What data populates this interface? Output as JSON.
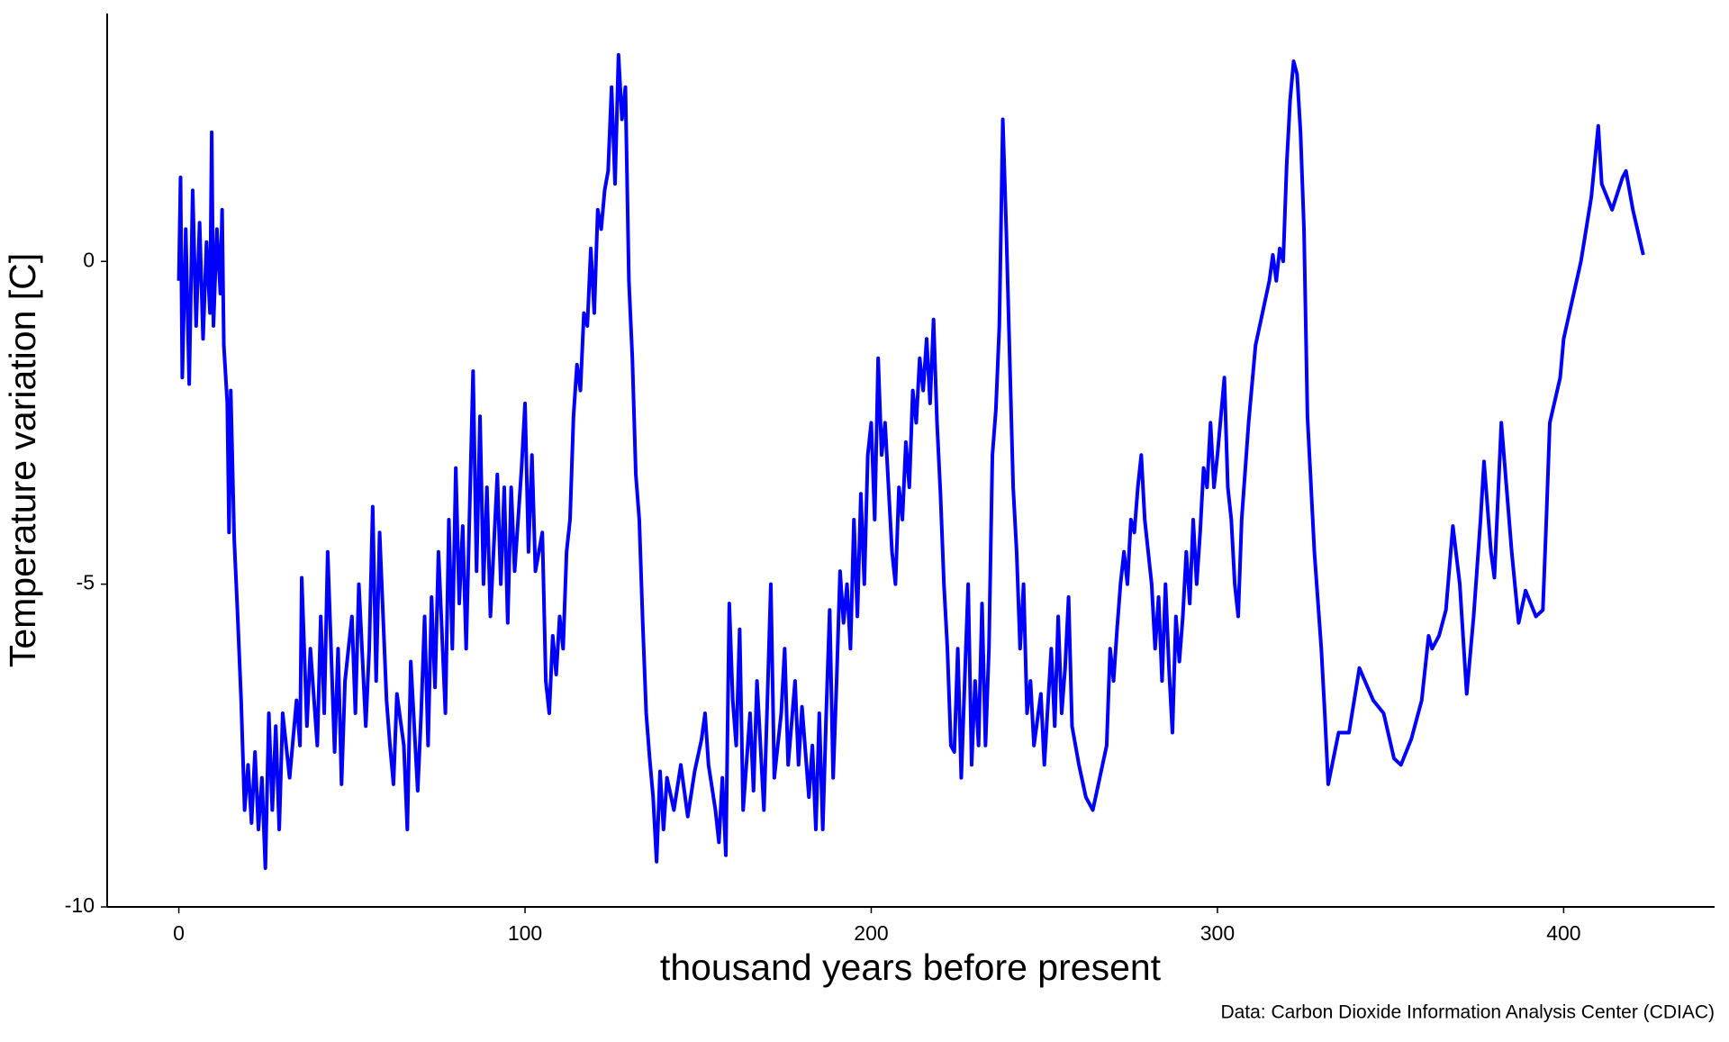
{
  "chart_data": {
    "type": "line",
    "xlabel": "thousand years before present",
    "ylabel": "Temperature variation [C]",
    "caption": "Data: Carbon Dioxide Information Analysis Center (CDIAC)",
    "color": "#0000ff",
    "xlim": [
      -20.7,
      443.6
    ],
    "xticks": [
      0,
      100,
      200,
      300,
      400
    ],
    "ylim": [
      -10,
      3.84
    ],
    "yticks": [
      -10,
      -5,
      0
    ],
    "grid": false,
    "x": [
      0,
      0.5,
      1,
      2,
      3,
      4,
      5,
      6,
      7,
      8,
      9,
      9.5,
      10,
      11,
      12,
      12.5,
      13,
      14,
      14.5,
      15,
      16,
      17,
      18,
      19,
      20,
      21,
      22,
      23,
      24,
      25,
      26,
      27,
      28,
      29,
      30,
      32,
      34,
      35,
      35.5,
      37,
      38,
      40,
      41,
      42,
      43,
      45,
      46,
      47,
      48,
      50,
      51,
      52,
      54,
      55,
      56,
      57,
      58,
      60,
      61,
      62,
      63,
      65,
      66,
      67,
      69,
      70,
      71,
      72,
      73,
      74,
      75,
      77,
      78,
      79,
      80,
      81,
      82,
      83,
      85,
      86,
      87,
      88,
      89,
      90,
      92,
      93,
      94,
      95,
      96,
      97,
      99,
      100,
      101,
      102,
      103,
      105,
      106,
      107,
      108,
      109,
      110,
      111,
      112,
      113,
      114,
      115,
      116,
      117,
      118,
      119,
      120,
      121,
      122,
      123,
      124,
      125,
      126,
      127,
      128,
      129,
      130,
      131,
      132,
      133,
      134,
      135,
      136,
      137,
      138,
      139,
      140,
      141,
      143,
      145,
      147,
      149,
      151,
      152,
      153,
      155,
      156,
      157,
      158,
      159,
      160,
      161,
      162,
      163,
      165,
      166,
      167,
      169,
      170,
      171,
      172,
      174,
      175,
      176,
      178,
      179,
      180,
      182,
      183,
      184,
      185,
      186,
      187,
      188,
      189,
      190,
      191,
      192,
      193,
      194,
      195,
      196,
      197,
      198,
      199,
      200,
      201,
      202,
      203,
      204,
      205,
      206,
      207,
      208,
      209,
      210,
      211,
      212,
      213,
      214,
      215,
      216,
      217,
      218,
      219,
      220,
      221,
      222,
      223,
      224,
      225,
      226,
      227,
      228,
      229,
      230,
      231,
      232,
      233,
      234,
      235,
      236,
      237,
      238,
      239,
      240,
      241,
      242,
      243,
      244,
      245,
      246,
      247,
      249,
      250,
      252,
      253,
      254,
      255,
      256,
      257,
      258,
      260,
      262,
      264,
      266,
      268,
      269,
      270,
      271,
      272,
      273,
      274,
      275,
      276,
      277,
      278,
      279,
      280,
      281,
      282,
      283,
      284,
      285,
      286,
      287,
      288,
      289,
      290,
      291,
      292,
      293,
      294,
      295,
      296,
      297,
      298,
      299,
      300,
      302,
      303,
      304,
      305,
      306,
      307,
      309,
      311,
      313,
      315,
      316,
      317,
      318,
      319,
      320,
      321,
      322,
      323,
      324,
      325,
      326,
      328,
      330,
      331,
      332,
      335,
      338,
      341,
      345,
      348,
      351,
      353,
      356,
      359,
      361,
      362,
      364,
      366,
      368,
      370,
      372,
      374,
      376,
      377,
      379,
      380,
      382,
      385,
      387,
      389,
      392,
      394,
      395,
      396,
      399,
      400,
      405,
      408,
      410,
      411,
      414,
      417,
      418,
      420,
      423
    ],
    "values": [
      -0.3,
      1.3,
      -1.8,
      0.5,
      -1.9,
      1.1,
      -1,
      0.6,
      -1.2,
      0.3,
      -0.8,
      2.0,
      -1,
      0.5,
      -0.5,
      0.8,
      -1.3,
      -2.2,
      -4.2,
      -2,
      -4.3,
      -5.5,
      -6.8,
      -8.5,
      -7.8,
      -8.7,
      -7.6,
      -8.8,
      -8.0,
      -9.4,
      -7.0,
      -8.5,
      -7.2,
      -8.8,
      -7.0,
      -8.0,
      -6.8,
      -7.5,
      -4.9,
      -7.2,
      -6.0,
      -7.5,
      -5.5,
      -7.0,
      -4.5,
      -7.6,
      -6.0,
      -8.1,
      -6.5,
      -5.5,
      -7.0,
      -5.0,
      -7.2,
      -6.0,
      -3.8,
      -6.5,
      -4.2,
      -6.8,
      -7.5,
      -8.1,
      -6.7,
      -7.5,
      -8.8,
      -6.2,
      -8.2,
      -7.0,
      -5.5,
      -7.5,
      -5.2,
      -6.6,
      -4.5,
      -7.0,
      -4.0,
      -6.0,
      -3.2,
      -5.3,
      -4.1,
      -6.0,
      -1.7,
      -4.8,
      -2.4,
      -5.0,
      -3.5,
      -5.5,
      -3.3,
      -5.0,
      -3.5,
      -5.6,
      -3.5,
      -4.8,
      -3.2,
      -2.2,
      -4.5,
      -3.0,
      -4.8,
      -4.2,
      -6.5,
      -7.0,
      -5.8,
      -6.4,
      -5.5,
      -6.0,
      -4.5,
      -4.0,
      -2.4,
      -1.6,
      -2.0,
      -0.8,
      -1.0,
      0.2,
      -0.8,
      0.8,
      0.5,
      1.1,
      1.4,
      2.7,
      1.2,
      3.2,
      2.2,
      2.7,
      -0.3,
      -1.5,
      -3.3,
      -4.0,
      -5.6,
      -7.0,
      -7.7,
      -8.3,
      -9.3,
      -7.9,
      -8.8,
      -8.0,
      -8.5,
      -7.8,
      -8.6,
      -7.9,
      -7.4,
      -7.0,
      -7.8,
      -8.5,
      -9.0,
      -8.0,
      -9.2,
      -5.3,
      -6.8,
      -7.5,
      -5.7,
      -8.5,
      -7.0,
      -8.2,
      -6.5,
      -8.5,
      -6.8,
      -5.0,
      -8.0,
      -7.0,
      -6.0,
      -7.8,
      -6.5,
      -7.8,
      -6.9,
      -8.3,
      -7.5,
      -8.8,
      -7.0,
      -8.8,
      -7.0,
      -5.4,
      -8.0,
      -6.5,
      -4.8,
      -5.6,
      -5.0,
      -6.0,
      -4.0,
      -5.5,
      -3.6,
      -5.0,
      -3.0,
      -2.5,
      -4.0,
      -1.5,
      -3.0,
      -2.5,
      -3.5,
      -4.5,
      -5.0,
      -3.5,
      -4.0,
      -2.8,
      -3.5,
      -2.0,
      -2.5,
      -1.5,
      -2.0,
      -1.2,
      -2.2,
      -0.9,
      -2.5,
      -3.6,
      -5.0,
      -6.0,
      -7.5,
      -7.6,
      -6.0,
      -8.0,
      -6.5,
      -5.0,
      -7.8,
      -6.5,
      -7.5,
      -5.3,
      -7.5,
      -6.0,
      -3.0,
      -2.3,
      -1.0,
      2.2,
      0.5,
      -1.5,
      -3.5,
      -4.5,
      -6.0,
      -5.0,
      -7.0,
      -6.5,
      -7.5,
      -6.7,
      -7.8,
      -6.0,
      -7.2,
      -5.5,
      -7.0,
      -6.3,
      -5.2,
      -7.2,
      -7.8,
      -8.3,
      -8.5,
      -8.0,
      -7.5,
      -6.0,
      -6.5,
      -5.7,
      -5.0,
      -4.5,
      -5.0,
      -4.0,
      -4.2,
      -3.5,
      -3.0,
      -4.0,
      -4.5,
      -5.0,
      -6.0,
      -5.2,
      -6.5,
      -5.0,
      -6.3,
      -7.3,
      -5.5,
      -6.2,
      -5.5,
      -4.5,
      -5.3,
      -4.0,
      -5.0,
      -4.2,
      -3.2,
      -3.5,
      -2.5,
      -3.5,
      -3.0,
      -1.8,
      -3.5,
      -4.0,
      -5.0,
      -5.5,
      -4.0,
      -2.5,
      -1.3,
      -0.8,
      -0.3,
      0.1,
      -0.3,
      0.2,
      0.0,
      1.5,
      2.5,
      3.1,
      2.9,
      2.0,
      0.5,
      -2.4,
      -4.5,
      -6.0,
      -7.0,
      -8.1,
      -7.3,
      -7.3,
      -6.3,
      -6.8,
      -7.0,
      -7.7,
      -7.8,
      -7.4,
      -6.8,
      -5.8,
      -6.0,
      -5.8,
      -5.4,
      -4.1,
      -5.0,
      -6.7,
      -5.5,
      -4.0,
      -3.1,
      -4.5,
      -4.9,
      -2.5,
      -4.5,
      -5.6,
      -5.1,
      -5.5,
      -5.4,
      -4.0,
      -2.5,
      -1.8,
      -1.2,
      0.0,
      1.0,
      2.1,
      1.2,
      0.8,
      1.3,
      1.4,
      0.8,
      0.1
    ]
  }
}
